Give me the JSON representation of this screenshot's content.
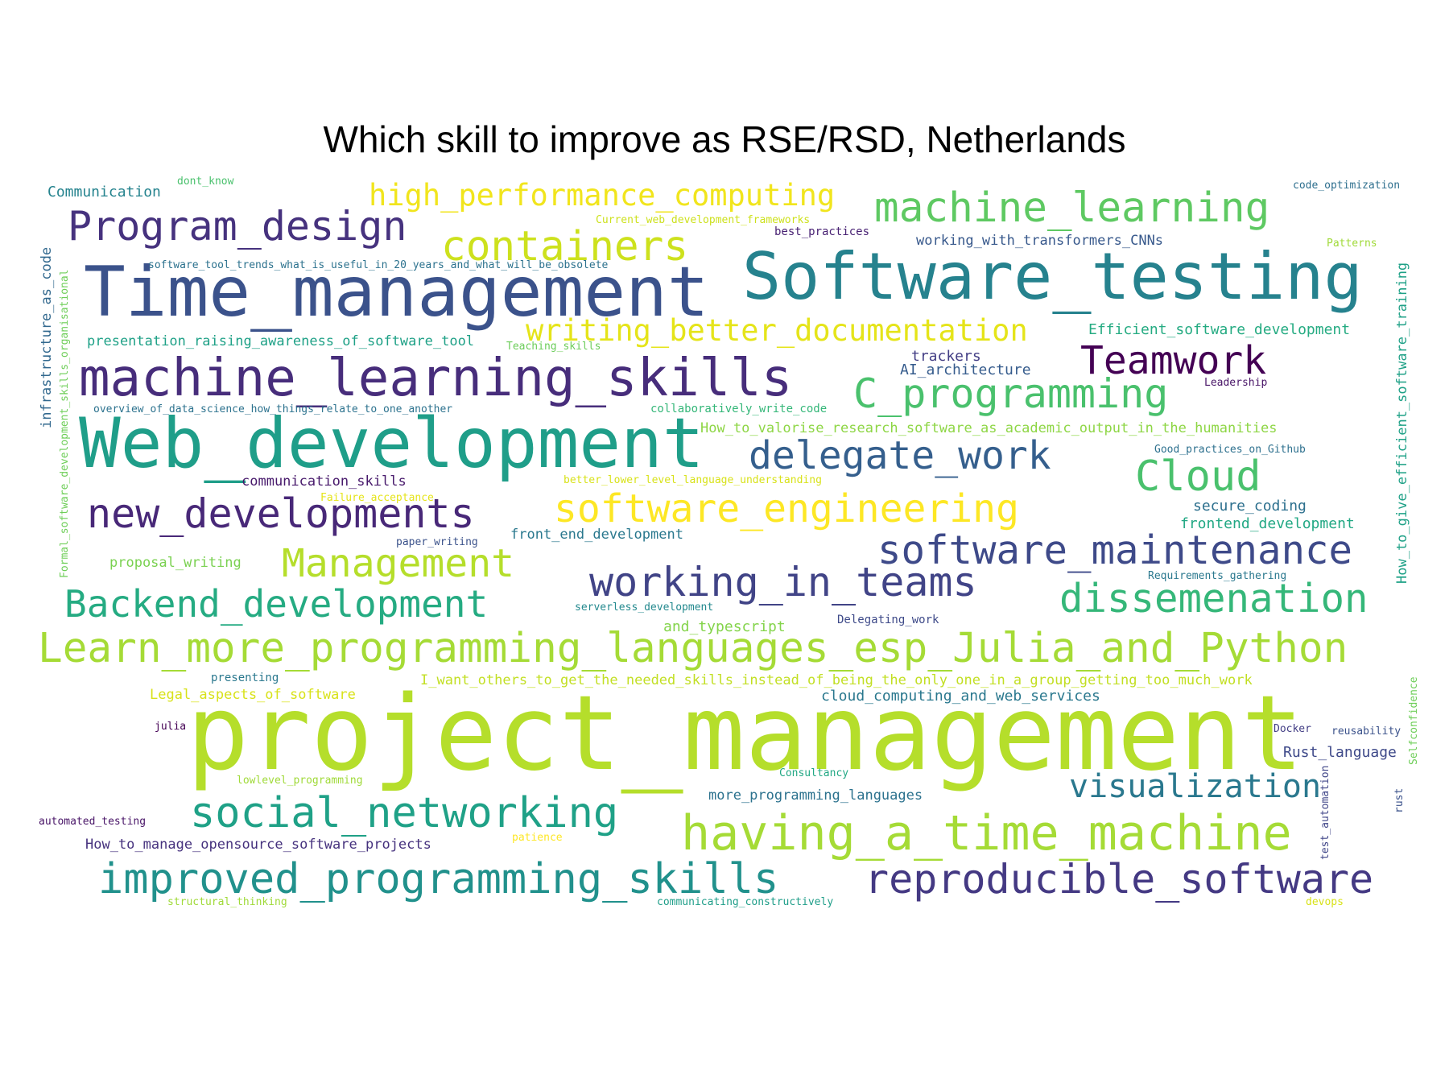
{
  "title": "Which skill to improve as RSE/RSD, Netherlands",
  "words": [
    {
      "text": "project_management",
      "color": "#b5de2b"
    },
    {
      "text": "Web_development",
      "color": "#1f9e89"
    },
    {
      "text": "Time_management",
      "color": "#3b528b"
    },
    {
      "text": "Software_testing",
      "color": "#26828e"
    },
    {
      "text": "machine_learning_skills",
      "color": "#472d7b"
    },
    {
      "text": "Learn_more_programming_languages_esp_Julia_and_Python",
      "color": "#a5db36"
    },
    {
      "text": "having_a_time_machine",
      "color": "#a5db36"
    },
    {
      "text": "improved_programming_skills",
      "color": "#21918c"
    },
    {
      "text": "reproducible_software",
      "color": "#443983"
    },
    {
      "text": "social_networking",
      "color": "#1fa187"
    },
    {
      "text": "Program_design",
      "color": "#46327e"
    },
    {
      "text": "machine_learning",
      "color": "#5ec962"
    },
    {
      "text": "containers",
      "color": "#cde11d"
    },
    {
      "text": "high_performance_computing",
      "color": "#f1e51d"
    },
    {
      "text": "writing_better_documentation",
      "color": "#e5e419"
    },
    {
      "text": "Teamwork",
      "color": "#440154"
    },
    {
      "text": "C_programming",
      "color": "#4ac16d"
    },
    {
      "text": "delegate_work",
      "color": "#355f8d"
    },
    {
      "text": "Cloud",
      "color": "#4ac16d"
    },
    {
      "text": "new_developments",
      "color": "#482878"
    },
    {
      "text": "software_engineering",
      "color": "#fde725"
    },
    {
      "text": "software_maintenance",
      "color": "#3e4a89"
    },
    {
      "text": "Management",
      "color": "#b5de2b"
    },
    {
      "text": "working_in_teams",
      "color": "#414487"
    },
    {
      "text": "Backend_development",
      "color": "#25ab82"
    },
    {
      "text": "dissemenation",
      "color": "#35b779"
    },
    {
      "text": "visualization",
      "color": "#2a788e"
    },
    {
      "text": "Communication",
      "color": "#25838e"
    },
    {
      "text": "dont_know",
      "color": "#4ac16d"
    },
    {
      "text": "Current_web_development_frameworks",
      "color": "#cde11d"
    },
    {
      "text": "best_practices",
      "color": "#482173"
    },
    {
      "text": "working_with_transformers_CNNs",
      "color": "#38598c"
    },
    {
      "text": "Patterns",
      "color": "#a0da39"
    },
    {
      "text": "code_optimization",
      "color": "#2e6f8e"
    },
    {
      "text": "software_tool_trends_what_is_useful_in_20_years_and_what_will_be_obsolete",
      "color": "#2c728e"
    },
    {
      "text": "presentation_raising_awareness_of_software_tool",
      "color": "#1fa187"
    },
    {
      "text": "Teaching_skills",
      "color": "#6ccd5a"
    },
    {
      "text": "Efficient_software_development",
      "color": "#25ab82"
    },
    {
      "text": "trackers",
      "color": "#433e85"
    },
    {
      "text": "AI_architecture",
      "color": "#365c8d"
    },
    {
      "text": "Leadership",
      "color": "#481467"
    },
    {
      "text": "overview_of_data_science_how_things_relate_to_one_another",
      "color": "#2c728e"
    },
    {
      "text": "collaboratively_write_code",
      "color": "#35b779"
    },
    {
      "text": "How_to_valorise_research_software_as_academic_output_in_the_humanities",
      "color": "#8ed645"
    },
    {
      "text": "Good_practices_on_Github",
      "color": "#2d708e"
    },
    {
      "text": "communication_skills",
      "color": "#481a6c"
    },
    {
      "text": "better_lower_level_language_understanding",
      "color": "#d8e219"
    },
    {
      "text": "Failure_acceptance",
      "color": "#e5e419"
    },
    {
      "text": "secure_coding",
      "color": "#2d708e"
    },
    {
      "text": "frontend_development",
      "color": "#22a884"
    },
    {
      "text": "paper_writing",
      "color": "#3b528b"
    },
    {
      "text": "front_end_development",
      "color": "#2a788e"
    },
    {
      "text": "proposal_writing",
      "color": "#7ad151"
    },
    {
      "text": "Requirements_gathering",
      "color": "#2a788e"
    },
    {
      "text": "serverless_development",
      "color": "#23898e"
    },
    {
      "text": "and_typescript",
      "color": "#84d44b"
    },
    {
      "text": "Delegating_work",
      "color": "#3e4a89"
    },
    {
      "text": "presenting",
      "color": "#2a788e"
    },
    {
      "text": "I_want_others_to_get_the_needed_skills_instead_of_being_the_only_one_in_a_group_getting_too_much_work",
      "color": "#c2df23"
    },
    {
      "text": "Legal_aspects_of_software",
      "color": "#d8e219"
    },
    {
      "text": "cloud_computing_and_web_services",
      "color": "#2a788e"
    },
    {
      "text": "julia",
      "color": "#440154"
    },
    {
      "text": "Docker",
      "color": "#433e85"
    },
    {
      "text": "reusability",
      "color": "#3b528b"
    },
    {
      "text": "Rust_language",
      "color": "#3e4989"
    },
    {
      "text": "lowlevel_programming",
      "color": "#a0da39"
    },
    {
      "text": "Consultancy",
      "color": "#22a884"
    },
    {
      "text": "more_programming_languages",
      "color": "#2c728e"
    },
    {
      "text": "automated_testing",
      "color": "#481467"
    },
    {
      "text": "How_to_manage_opensource_software_projects",
      "color": "#46327e"
    },
    {
      "text": "patience",
      "color": "#fde725"
    },
    {
      "text": "structural_thinking",
      "color": "#a0da39"
    },
    {
      "text": "communicating_constructively",
      "color": "#1f9e89"
    },
    {
      "text": "devops",
      "color": "#d8e219"
    },
    {
      "text": "infrastructure_as_code",
      "color": "#31688e"
    },
    {
      "text": "Formal_software_development_skills_organisational",
      "color": "#6ece58"
    },
    {
      "text": "How_to_give_efficient_software_training",
      "color": "#1fa187"
    },
    {
      "text": "Selfconfidence",
      "color": "#6ece58"
    },
    {
      "text": "test_automation",
      "color": "#404688"
    },
    {
      "text": "rust",
      "color": "#3b528b"
    }
  ]
}
